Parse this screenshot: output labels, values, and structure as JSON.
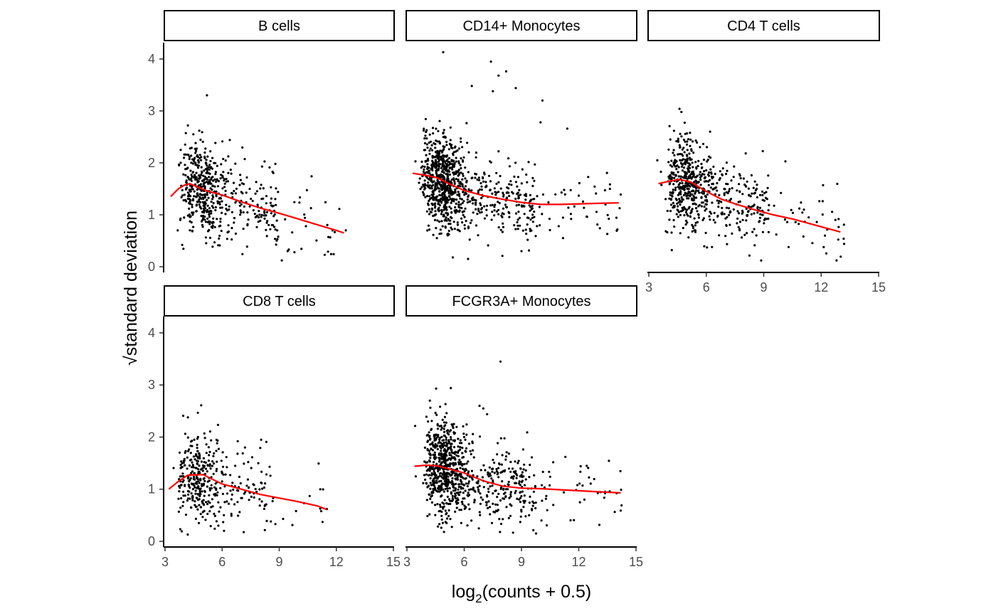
{
  "chart_data": {
    "type": "scatter",
    "xlabel": {
      "base": "log",
      "sub": "2",
      "rest": "(counts + 0.5)"
    },
    "ylabel": {
      "radical": "√",
      "text": "standard deviation"
    },
    "xlim": [
      3,
      15
    ],
    "ylim": [
      0,
      4.3
    ],
    "x_ticks": [
      3,
      6,
      9,
      12,
      15
    ],
    "y_ticks": [
      0,
      1,
      2,
      3,
      4
    ],
    "grid": false,
    "trend_color": "#ff0000",
    "point_color": "#000000",
    "panels": [
      {
        "name": "B cells",
        "n_points": 560,
        "x_extent": [
          3.3,
          12.6
        ],
        "outliers": [
          [
            5.2,
            3.3
          ],
          [
            6.4,
            2.44
          ],
          [
            8.8,
            1.98
          ],
          [
            10.7,
            1.74
          ],
          [
            9.8,
            0.28
          ],
          [
            9.5,
            0.33
          ],
          [
            11.8,
            0.7
          ],
          [
            12.5,
            0.7
          ],
          [
            10.4,
            0.78
          ],
          [
            3.9,
            0.42
          ],
          [
            4.8,
            2.62
          ],
          [
            4.2,
            2.72
          ],
          [
            8.1,
            1.93
          ],
          [
            5.6,
            0.47
          ]
        ],
        "trend": [
          [
            3.3,
            1.35
          ],
          [
            3.7,
            1.5
          ],
          [
            4.0,
            1.57
          ],
          [
            4.3,
            1.6
          ],
          [
            4.8,
            1.52
          ],
          [
            5.2,
            1.46
          ],
          [
            6.0,
            1.38
          ],
          [
            7.0,
            1.25
          ],
          [
            8.0,
            1.13
          ],
          [
            9.0,
            1.03
          ],
          [
            10.0,
            0.92
          ],
          [
            11.0,
            0.81
          ],
          [
            12.0,
            0.7
          ],
          [
            12.4,
            0.65
          ]
        ],
        "show_y_axis": true,
        "show_x_axis": false
      },
      {
        "name": "CD14+ Monocytes",
        "n_points": 960,
        "x_extent": [
          3.3,
          14.2
        ],
        "outliers": [
          [
            4.9,
            4.13
          ],
          [
            7.4,
            3.95
          ],
          [
            8.2,
            3.76
          ],
          [
            7.8,
            3.68
          ],
          [
            7.5,
            3.38
          ],
          [
            8.7,
            3.44
          ],
          [
            6.4,
            3.48
          ],
          [
            10.1,
            3.2
          ],
          [
            11.4,
            2.66
          ],
          [
            10.0,
            2.78
          ],
          [
            12.9,
            1.41
          ],
          [
            14.2,
            1.39
          ],
          [
            13.4,
            1.2
          ],
          [
            11.6,
            0.92
          ],
          [
            9.0,
            0.3
          ],
          [
            8.0,
            0.21
          ],
          [
            6.2,
            0.15
          ],
          [
            5.4,
            0.18
          ],
          [
            11.1,
            1.43
          ],
          [
            12.0,
            1.37
          ]
        ],
        "trend": [
          [
            3.3,
            1.8
          ],
          [
            4.0,
            1.76
          ],
          [
            4.6,
            1.71
          ],
          [
            5.2,
            1.6
          ],
          [
            6.0,
            1.47
          ],
          [
            7.0,
            1.37
          ],
          [
            8.0,
            1.3
          ],
          [
            9.0,
            1.24
          ],
          [
            10.0,
            1.2
          ],
          [
            11.0,
            1.2
          ],
          [
            12.0,
            1.21
          ],
          [
            13.0,
            1.22
          ],
          [
            14.1,
            1.23
          ]
        ],
        "show_y_axis": false,
        "show_x_axis": false
      },
      {
        "name": "CD4 T cells",
        "n_points": 650,
        "x_extent": [
          3.4,
          13.2
        ],
        "outliers": [
          [
            4.6,
            3.04
          ],
          [
            4.7,
            2.98
          ],
          [
            6.2,
            2.6
          ],
          [
            12.1,
            1.57
          ],
          [
            13.2,
            0.44
          ],
          [
            10.3,
            0.38
          ],
          [
            9.9,
            1.42
          ],
          [
            12.2,
            0.6
          ],
          [
            4.2,
            0.32
          ],
          [
            6.3,
            0.38
          ],
          [
            11.1,
            1.1
          ]
        ],
        "trend": [
          [
            3.5,
            1.6
          ],
          [
            4.0,
            1.64
          ],
          [
            4.6,
            1.68
          ],
          [
            5.2,
            1.63
          ],
          [
            6.0,
            1.45
          ],
          [
            6.8,
            1.3
          ],
          [
            7.6,
            1.2
          ],
          [
            8.5,
            1.1
          ],
          [
            9.5,
            1.0
          ],
          [
            10.5,
            0.92
          ],
          [
            11.5,
            0.82
          ],
          [
            12.4,
            0.73
          ],
          [
            13.0,
            0.67
          ]
        ],
        "show_y_axis": false,
        "show_x_axis": true
      },
      {
        "name": "CD8 T cells",
        "n_points": 380,
        "x_extent": [
          3.2,
          11.5
        ],
        "outliers": [
          [
            4.2,
            2.38
          ],
          [
            4.9,
            2.61
          ],
          [
            7.2,
            1.8
          ],
          [
            6.1,
            0.2
          ],
          [
            8.8,
            0.33
          ],
          [
            10.6,
            0.87
          ],
          [
            11.5,
            0.62
          ],
          [
            9.2,
            0.43
          ],
          [
            5.8,
            0.3
          ]
        ],
        "trend": [
          [
            3.2,
            1.0
          ],
          [
            3.7,
            1.15
          ],
          [
            4.2,
            1.27
          ],
          [
            5.0,
            1.28
          ],
          [
            5.6,
            1.17
          ],
          [
            6.0,
            1.1
          ],
          [
            7.0,
            1.0
          ],
          [
            8.0,
            0.9
          ],
          [
            9.0,
            0.83
          ],
          [
            10.0,
            0.76
          ],
          [
            11.0,
            0.68
          ],
          [
            11.5,
            0.61
          ]
        ],
        "show_y_axis": true,
        "show_x_axis": true
      },
      {
        "name": "FCGR3A+ Monocytes",
        "n_points": 920,
        "x_extent": [
          3.4,
          14.3
        ],
        "outliers": [
          [
            7.9,
            3.45
          ],
          [
            5.3,
            2.94
          ],
          [
            6.8,
            2.6
          ],
          [
            7.0,
            2.55
          ],
          [
            9.3,
            2.09
          ],
          [
            11.3,
            1.62
          ],
          [
            12.1,
            1.44
          ],
          [
            12.2,
            1.07
          ],
          [
            12.3,
            0.8
          ],
          [
            14.2,
            0.59
          ],
          [
            10.3,
            0.87
          ],
          [
            4.8,
            0.26
          ],
          [
            4.7,
            0.33
          ],
          [
            7.2,
            2.44
          ],
          [
            4.2,
            2.7
          ],
          [
            9.4,
            0.5
          ]
        ],
        "trend": [
          [
            3.4,
            1.44
          ],
          [
            4.0,
            1.46
          ],
          [
            4.6,
            1.45
          ],
          [
            5.2,
            1.39
          ],
          [
            6.0,
            1.31
          ],
          [
            7.0,
            1.16
          ],
          [
            8.0,
            1.06
          ],
          [
            9.0,
            1.02
          ],
          [
            10.0,
            1.01
          ],
          [
            11.0,
            0.99
          ],
          [
            12.0,
            0.97
          ],
          [
            13.0,
            0.95
          ],
          [
            14.2,
            0.93
          ]
        ],
        "show_y_axis": false,
        "show_x_axis": true
      }
    ]
  }
}
